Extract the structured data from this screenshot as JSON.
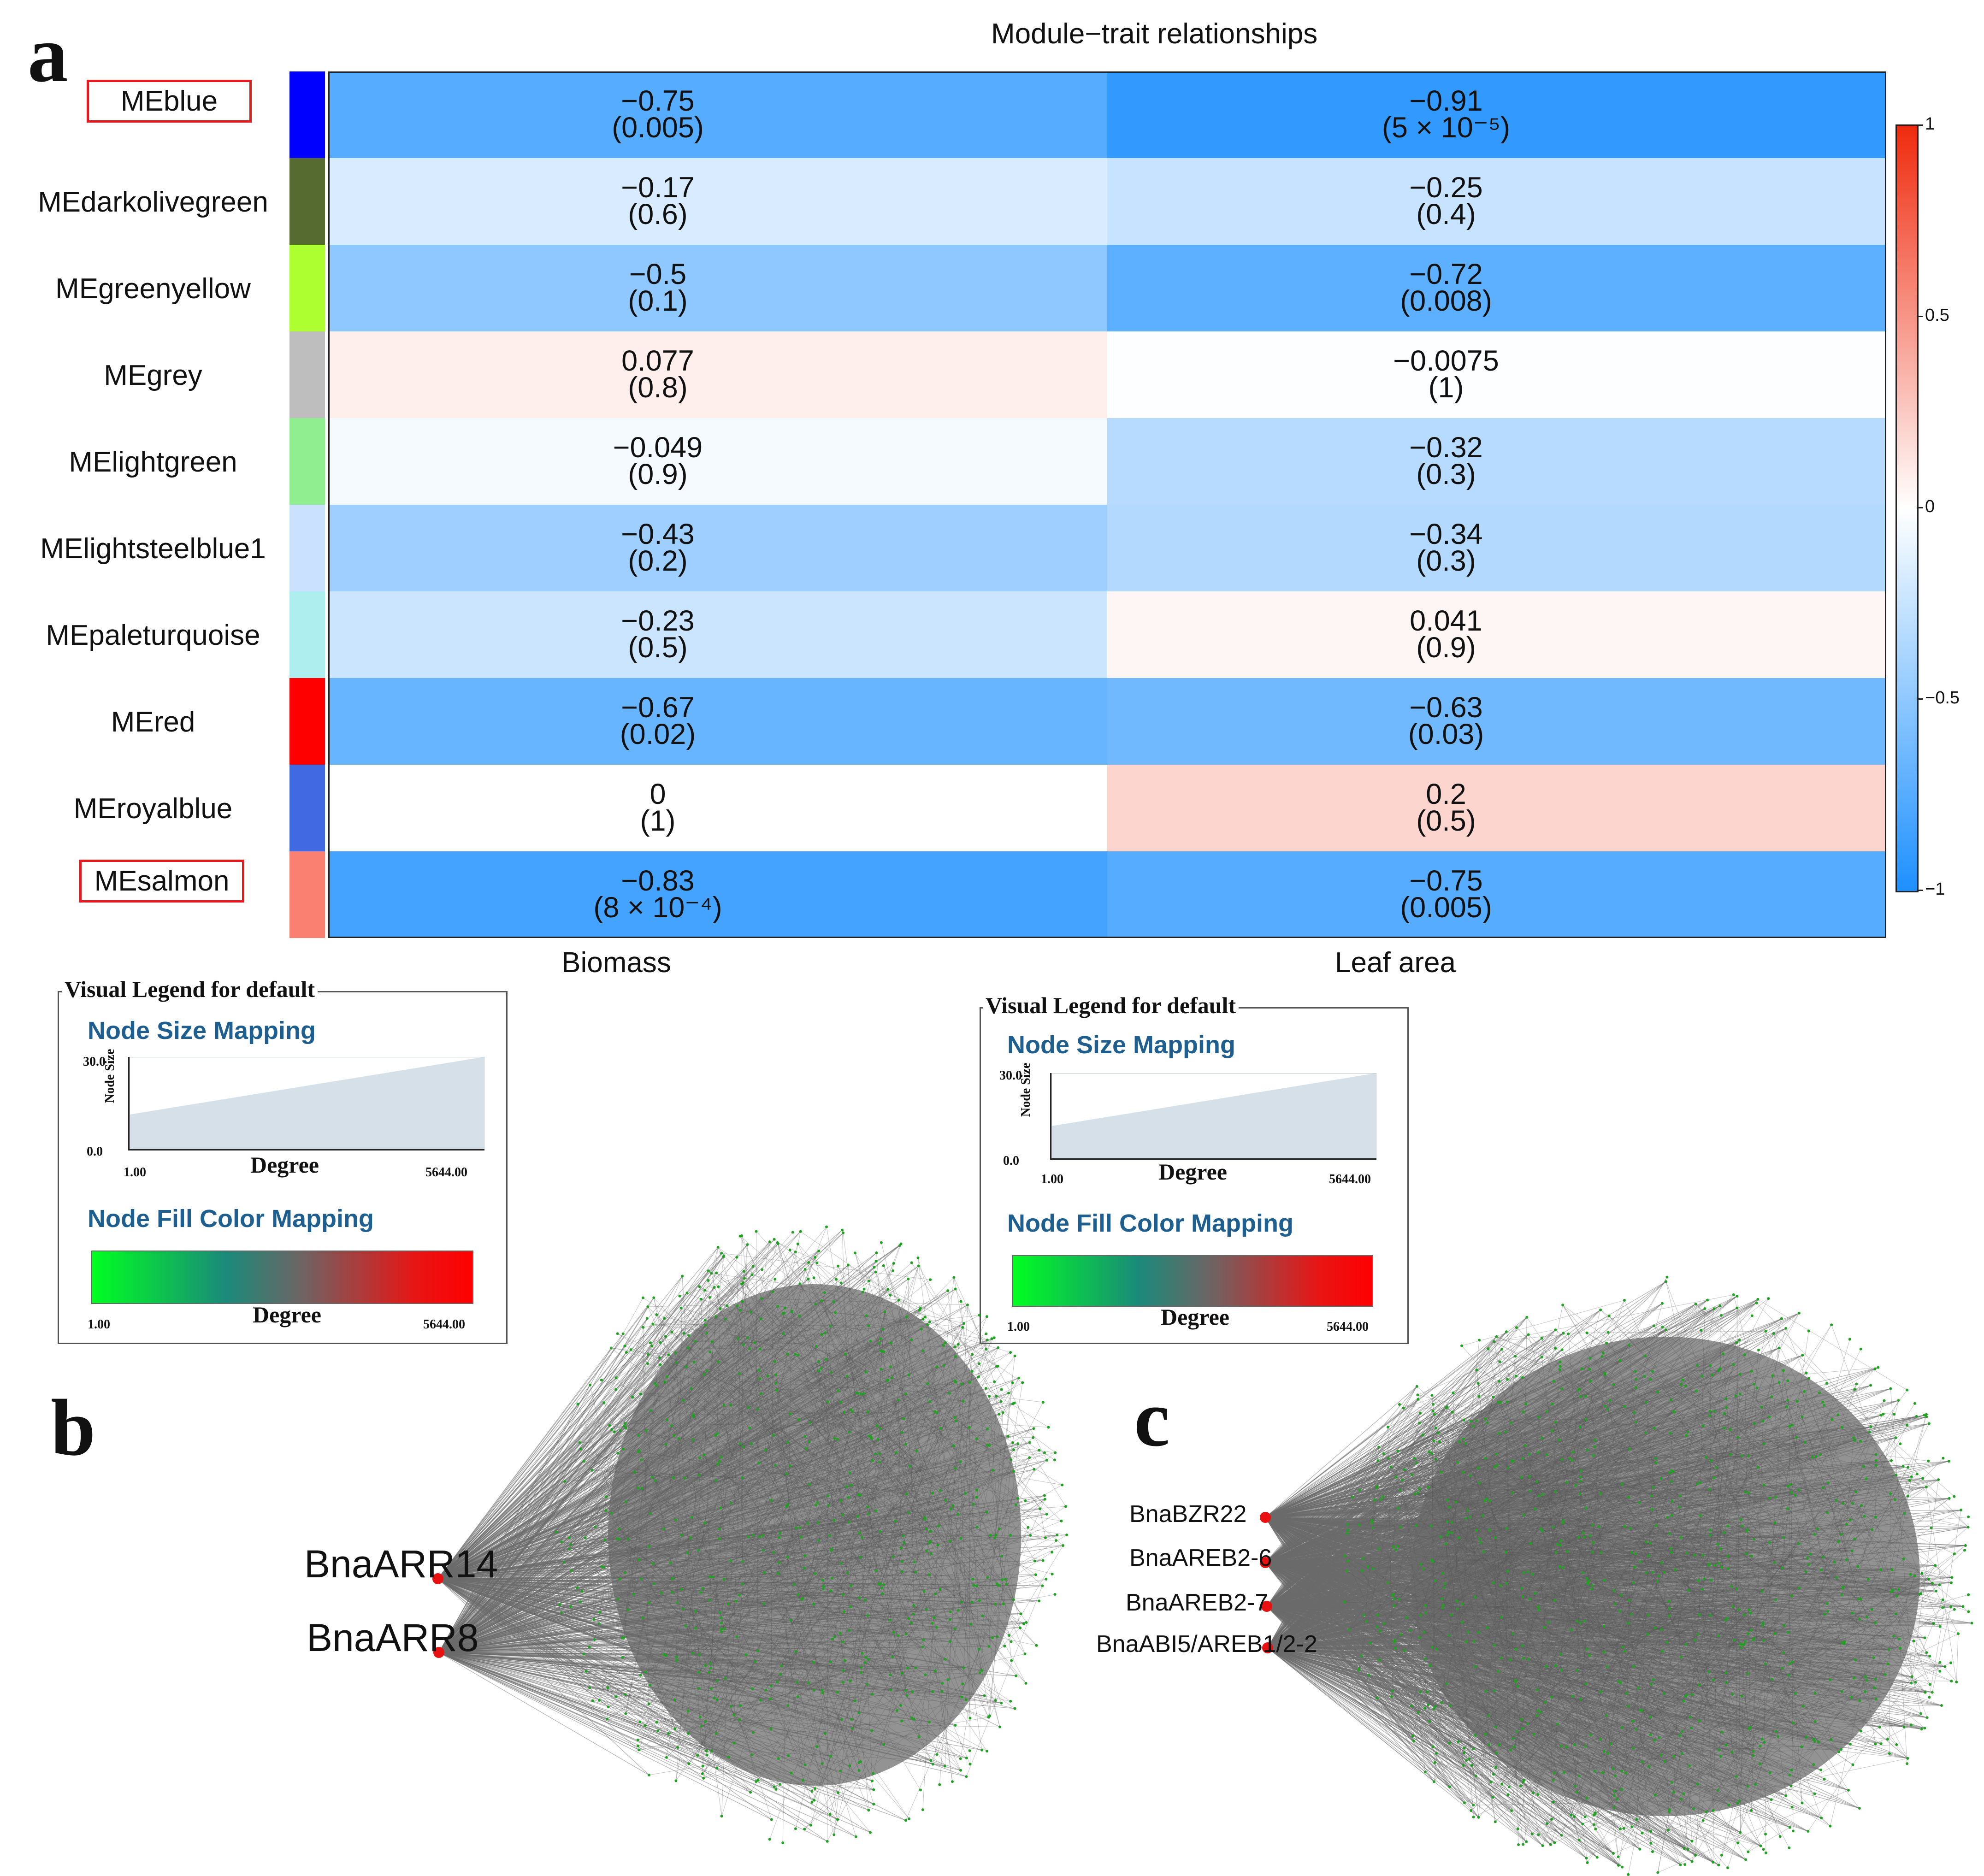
{
  "panels": {
    "a": "a",
    "b": "b",
    "c": "c"
  },
  "heatmap": {
    "title": "Module−trait relationships",
    "traits": [
      "Biomass",
      "Leaf area"
    ],
    "modules": [
      {
        "label": "MEblue",
        "color": "#0000ff",
        "highlight": true,
        "cells": [
          {
            "r": "−0.75",
            "p": "(0.005)",
            "v": -0.75
          },
          {
            "r": "−0.91",
            "p": "(5 × 10⁻⁵)",
            "v": -0.91
          }
        ]
      },
      {
        "label": "MEdarkolivegreen",
        "color": "#556b2f",
        "highlight": false,
        "cells": [
          {
            "r": "−0.17",
            "p": "(0.6)",
            "v": -0.17
          },
          {
            "r": "−0.25",
            "p": "(0.4)",
            "v": -0.25
          }
        ]
      },
      {
        "label": "MEgreenyellow",
        "color": "#adff2f",
        "highlight": false,
        "cells": [
          {
            "r": "−0.5",
            "p": "(0.1)",
            "v": -0.5
          },
          {
            "r": "−0.72",
            "p": "(0.008)",
            "v": -0.72
          }
        ]
      },
      {
        "label": "MEgrey",
        "color": "#bebebe",
        "highlight": false,
        "cells": [
          {
            "r": "0.077",
            "p": "(0.8)",
            "v": 0.077
          },
          {
            "r": "−0.0075",
            "p": "(1)",
            "v": -0.0075
          }
        ]
      },
      {
        "label": "MElightgreen",
        "color": "#90ee90",
        "highlight": false,
        "cells": [
          {
            "r": "−0.049",
            "p": "(0.9)",
            "v": -0.049
          },
          {
            "r": "−0.32",
            "p": "(0.3)",
            "v": -0.32
          }
        ]
      },
      {
        "label": "MElightsteelblue1",
        "color": "#cae1ff",
        "highlight": false,
        "cells": [
          {
            "r": "−0.43",
            "p": "(0.2)",
            "v": -0.43
          },
          {
            "r": "−0.34",
            "p": "(0.3)",
            "v": -0.34
          }
        ]
      },
      {
        "label": "MEpaleturquoise",
        "color": "#afeeee",
        "highlight": false,
        "cells": [
          {
            "r": "−0.23",
            "p": "(0.5)",
            "v": -0.23
          },
          {
            "r": "0.041",
            "p": "(0.9)",
            "v": 0.041
          }
        ]
      },
      {
        "label": "MEred",
        "color": "#ff0000",
        "highlight": false,
        "cells": [
          {
            "r": "−0.67",
            "p": "(0.02)",
            "v": -0.67
          },
          {
            "r": "−0.63",
            "p": "(0.03)",
            "v": -0.63
          }
        ]
      },
      {
        "label": "MEroyalblue",
        "color": "#4169e1",
        "highlight": false,
        "cells": [
          {
            "r": "0",
            "p": "(1)",
            "v": 0
          },
          {
            "r": "0.2",
            "p": "(0.5)",
            "v": 0.2
          }
        ]
      },
      {
        "label": "MEsalmon",
        "color": "#fa8072",
        "highlight": true,
        "cells": [
          {
            "r": "−0.83",
            "p": "(8 × 10⁻⁴)",
            "v": -0.83
          },
          {
            "r": "−0.75",
            "p": "(0.005)",
            "v": -0.75
          }
        ]
      }
    ],
    "colorbar": {
      "ticks": [
        "1",
        "0.5",
        "0",
        "−0.5",
        "−1"
      ],
      "colors": {
        "neg": "#1e90ff",
        "mid": "#ffffff",
        "pos": "#ef2b0e"
      }
    }
  },
  "legends": [
    {
      "title": "Visual Legend for default",
      "size_heading": "Node Size Mapping",
      "size_axis": "Node Size",
      "size_max": "30.0",
      "size_min": "0.0",
      "deg_min": "1.00",
      "deg_max": "5644.00",
      "deg_label": "Degree",
      "fill_heading": "Node Fill Color Mapping",
      "fill_deg_label": "Degree",
      "fill_min": "1.00",
      "fill_max": "5644.00"
    },
    {
      "title": "Visual Legend for default",
      "size_heading": "Node Size Mapping",
      "size_axis": "Node Size",
      "size_max": "30.0",
      "size_min": "0.0",
      "deg_min": "1.00",
      "deg_max": "5644.00",
      "deg_label": "Degree",
      "fill_heading": "Node Fill Color Mapping",
      "fill_deg_label": "Degree",
      "fill_min": "1.00",
      "fill_max": "5644.00"
    }
  ],
  "networks": {
    "b": {
      "hubs": [
        "BnaARR14",
        "BnaARR8"
      ]
    },
    "c": {
      "hubs": [
        "BnaBZR22",
        "BnaAREB2-6",
        "BnaAREB2-7",
        "BnaABI5/AREB1/2-2"
      ]
    }
  },
  "chart_data": {
    "type": "heatmap",
    "title": "Module−trait relationships",
    "x": [
      "Biomass",
      "Leaf area"
    ],
    "y": [
      "MEblue",
      "MEdarkolivegreen",
      "MEgreenyellow",
      "MEgrey",
      "MElightgreen",
      "MElightsteelblue1",
      "MEpaleturquoise",
      "MEred",
      "MEroyalblue",
      "MEsalmon"
    ],
    "values": [
      [
        -0.75,
        -0.91
      ],
      [
        -0.17,
        -0.25
      ],
      [
        -0.5,
        -0.72
      ],
      [
        0.077,
        -0.0075
      ],
      [
        -0.049,
        -0.32
      ],
      [
        -0.43,
        -0.34
      ],
      [
        -0.23,
        0.041
      ],
      [
        -0.67,
        -0.63
      ],
      [
        0,
        0.2
      ],
      [
        -0.83,
        -0.75
      ]
    ],
    "p_values": [
      "(0.005)",
      "(5 × 10⁻⁵)",
      "(0.6)",
      "(0.4)",
      "(0.1)",
      "(0.008)",
      "(0.8)",
      "(1)",
      "(0.9)",
      "(0.3)",
      "(0.2)",
      "(0.3)",
      "(0.5)",
      "(0.9)",
      "(0.02)",
      "(0.03)",
      "(1)",
      "(0.5)",
      "(8 × 10⁻⁴)",
      "(0.005)"
    ],
    "colorbar_range": [
      -1,
      1
    ]
  }
}
